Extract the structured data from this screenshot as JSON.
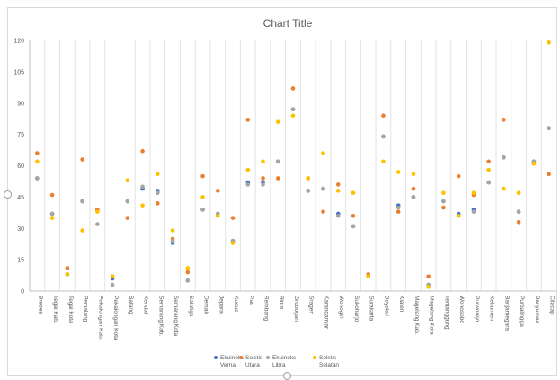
{
  "chart_data": {
    "type": "scatter",
    "title": "Chart Title",
    "ylim": [
      0,
      120
    ],
    "yticks": [
      "0",
      "15",
      "30",
      "45",
      "60",
      "75",
      "90",
      "105",
      "120"
    ],
    "grid": "vertical",
    "legend_position": "bottom",
    "categories": [
      "Brebes",
      "Tegal Kab.",
      "Tegal Kota",
      "Pemalang",
      "Pekalongan Kab.",
      "Pekalongan Kota",
      "Batang",
      "Kendal",
      "Semarang Kab.",
      "Semarang Kota",
      "Salatiga",
      "Demak",
      "Jepara",
      "Kudus",
      "Pati",
      "Rembang",
      "Blora",
      "Grobogan",
      "Sragen",
      "Karanganyar",
      "Wonogiri",
      "Sukoharjo",
      "Surakarta",
      "Boyolali",
      "Klaten",
      "Magelang Kab.",
      "Magelang Kota",
      "Temanggung",
      "Wonosobo",
      "Purworejo",
      "Kebumen",
      "Banjarnegara",
      "Purbalingga",
      "Banyumas",
      "Cilacap"
    ],
    "series": [
      {
        "name": "Ekuinoks Vernal",
        "color": "#4472c4",
        "values": [
          54,
          37,
          8,
          43,
          39,
          6,
          43,
          49,
          48,
          23,
          5,
          39,
          37,
          24,
          52,
          52,
          62,
          87,
          48,
          49,
          37,
          31,
          7,
          74,
          41,
          45,
          3,
          43,
          37,
          39,
          52,
          64,
          38,
          62,
          78
        ]
      },
      {
        "name": "Solstis Utara",
        "color": "#ed7d31",
        "values": [
          66,
          46,
          11,
          63,
          39,
          7,
          35,
          67,
          42,
          25,
          9,
          55,
          48,
          35,
          82,
          54,
          54,
          97,
          54,
          38,
          51,
          36,
          8,
          84,
          38,
          49,
          7,
          40,
          55,
          46,
          62,
          82,
          33,
          61,
          56
        ]
      },
      {
        "name": "Ekuinoks Libra",
        "color": "#a5a5a5",
        "values": [
          54,
          37,
          8,
          43,
          32,
          3,
          43,
          50,
          47,
          24,
          5,
          39,
          37,
          24,
          51,
          51,
          62,
          87,
          48,
          49,
          36,
          31,
          7,
          74,
          40,
          45,
          3,
          43,
          36,
          38,
          52,
          64,
          38,
          62,
          78
        ]
      },
      {
        "name": "Solstis Selatan",
        "color": "#ffc000",
        "values": [
          62,
          35,
          8,
          29,
          38,
          7,
          53,
          41,
          56,
          29,
          11,
          45,
          36,
          23,
          58,
          62,
          81,
          84,
          54,
          66,
          48,
          47,
          7,
          62,
          57,
          56,
          2,
          47,
          36,
          47,
          58,
          49,
          47,
          61,
          119
        ]
      }
    ]
  }
}
